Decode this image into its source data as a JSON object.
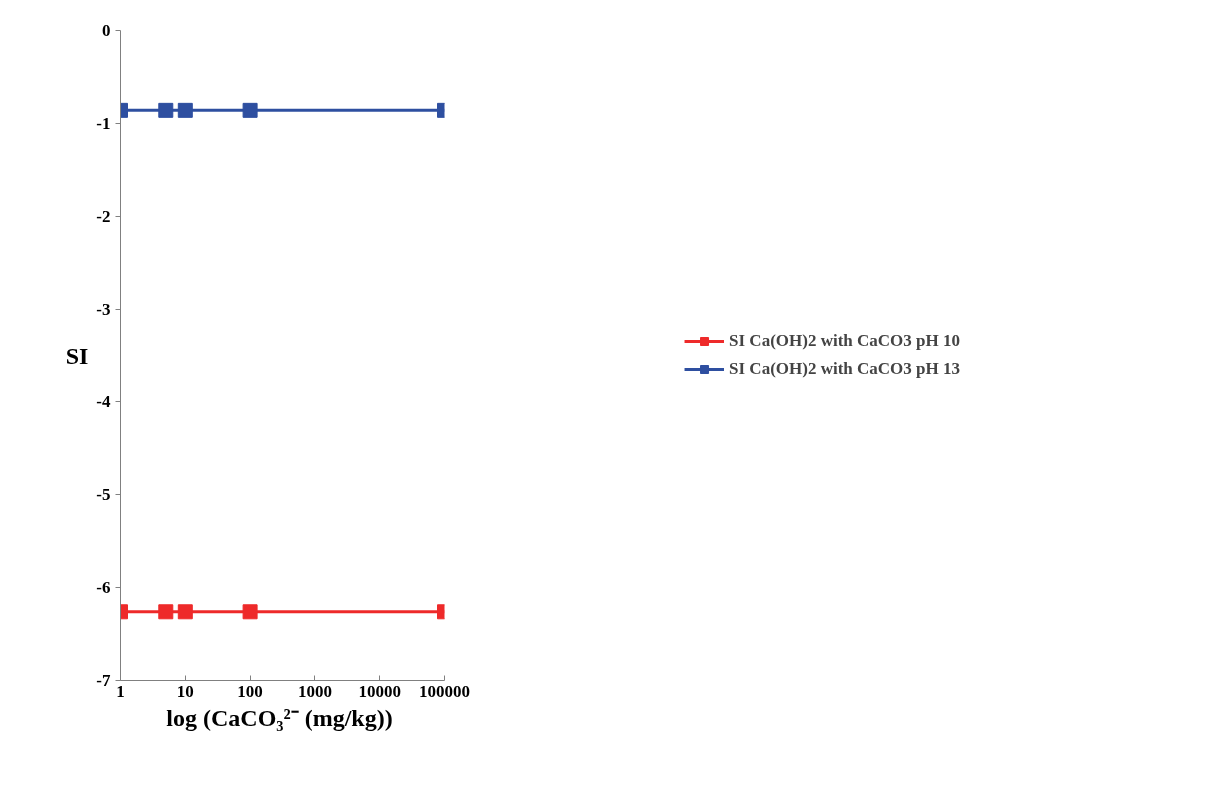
{
  "chart_data": {
    "type": "line",
    "xlabel": "log (CaCO₃²⁻  (mg/kg))",
    "ylabel": "SI",
    "x": [
      1,
      5,
      10,
      100,
      100000
    ],
    "series": [
      {
        "name": "SI Ca(OH)2 with CaCO3 pH 10",
        "color": "#ee2a2a",
        "values": [
          -6.26,
          -6.26,
          -6.26,
          -6.26,
          -6.26
        ]
      },
      {
        "name": "SI Ca(OH)2 with CaCO3 pH 13",
        "color": "#2e4fa0",
        "values": [
          -0.86,
          -0.86,
          -0.86,
          -0.86,
          -0.86
        ]
      }
    ],
    "log": "x",
    "xlim": [
      1,
      100000
    ],
    "xticks": [
      1,
      10,
      100,
      1000,
      10000,
      100000
    ],
    "ylim": [
      -7,
      0
    ],
    "yticks": [
      0,
      -1,
      -2,
      -3,
      -4,
      -5,
      -6,
      -7
    ],
    "grid": false,
    "legend": "right",
    "marker": "square",
    "line_style": "solid"
  }
}
